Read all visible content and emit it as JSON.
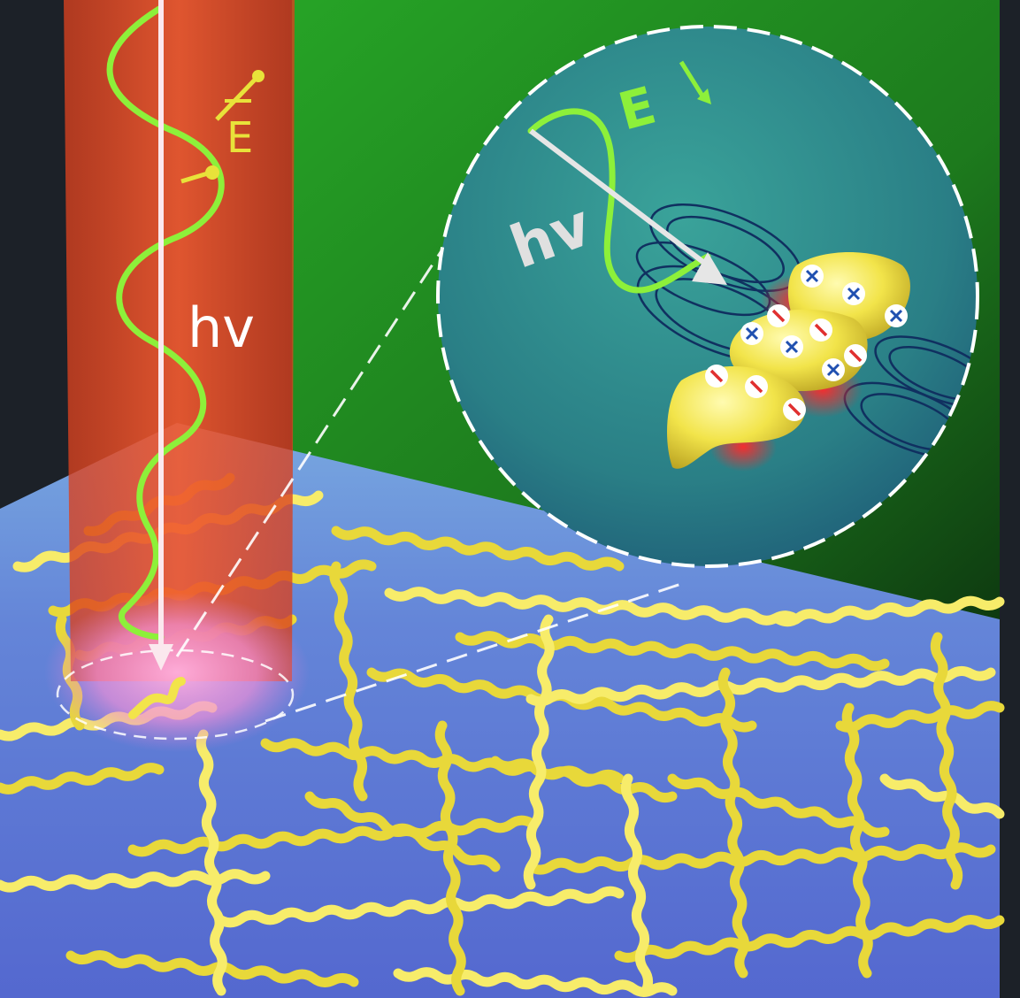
{
  "beam": {
    "field_label": "E",
    "photon_label": "hv"
  },
  "inset": {
    "field_label": "E",
    "photon_label": "hv"
  },
  "colors": {
    "background_dark": "#1c2128",
    "green_wedge": "#1f8a1f",
    "substrate": "#5a73d8",
    "beam_red": "#e8502a",
    "helix_yellow": "#f2e44a",
    "wave_green": "#8df03a",
    "label_yellow": "#e8e23a",
    "inset_teal": "#2a8a88",
    "charge_red": "#e03030",
    "charge_blue": "#2050b0"
  },
  "icons": [
    "plus-charge-icon",
    "minus-charge-icon"
  ]
}
